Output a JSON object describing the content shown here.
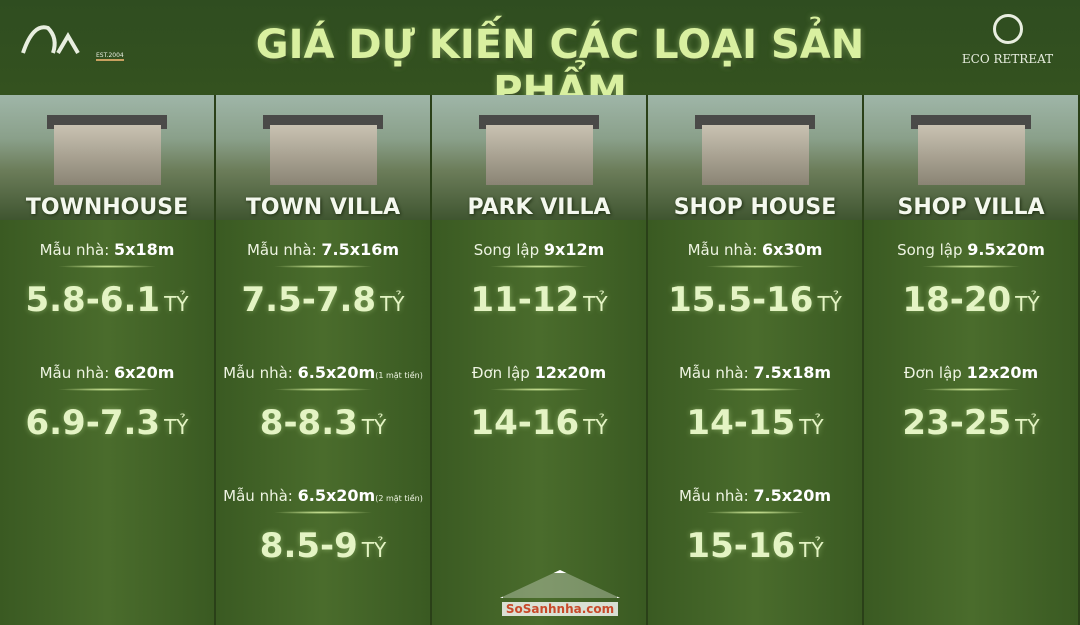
{
  "header": {
    "title": "GIÁ DỰ KIẾN CÁC LOẠI SẢN PHẨM",
    "logo_left": "EST.2004",
    "logo_right": "ECO RETREAT"
  },
  "columns": [
    {
      "name": "TOWNHOUSE",
      "items": [
        {
          "prefix": "Mẫu nhà:",
          "size": "5x18m",
          "note": "",
          "price": "5.8-6.1",
          "unit": "TỶ"
        },
        {
          "prefix": "Mẫu nhà:",
          "size": "6x20m",
          "note": "",
          "price": "6.9-7.3",
          "unit": "TỶ"
        }
      ]
    },
    {
      "name": "TOWN VILLA",
      "items": [
        {
          "prefix": "Mẫu nhà:",
          "size": "7.5x16m",
          "note": "",
          "price": "7.5-7.8",
          "unit": "TỶ"
        },
        {
          "prefix": "Mẫu nhà:",
          "size": "6.5x20m",
          "note": "(1 mặt tiền)",
          "price": "8-8.3",
          "unit": "TỶ"
        },
        {
          "prefix": "Mẫu nhà:",
          "size": "6.5x20m",
          "note": "(2 mặt tiền)",
          "price": "8.5-9",
          "unit": "TỶ"
        }
      ]
    },
    {
      "name": "PARK VILLA",
      "items": [
        {
          "prefix": "Song lập",
          "size": "9x12m",
          "note": "",
          "price": "11-12",
          "unit": "TỶ"
        },
        {
          "prefix": "Đơn lập",
          "size": "12x20m",
          "note": "",
          "price": "14-16",
          "unit": "TỶ"
        }
      ]
    },
    {
      "name": "SHOP HOUSE",
      "items": [
        {
          "prefix": "Mẫu nhà:",
          "size": "6x30m",
          "note": "",
          "price": "15.5-16",
          "unit": "TỶ"
        },
        {
          "prefix": "Mẫu nhà:",
          "size": "7.5x18m",
          "note": "",
          "price": "14-15",
          "unit": "TỶ"
        },
        {
          "prefix": "Mẫu nhà:",
          "size": "7.5x20m",
          "note": "",
          "price": "15-16",
          "unit": "TỶ"
        }
      ]
    },
    {
      "name": "SHOP VILLA",
      "items": [
        {
          "prefix": "Song lập",
          "size": "9.5x20m",
          "note": "",
          "price": "18-20",
          "unit": "TỶ"
        },
        {
          "prefix": "Đơn lập",
          "size": "12x20m",
          "note": "",
          "price": "23-25",
          "unit": "TỶ"
        }
      ]
    }
  ],
  "watermark": "SoSanhnha.com"
}
